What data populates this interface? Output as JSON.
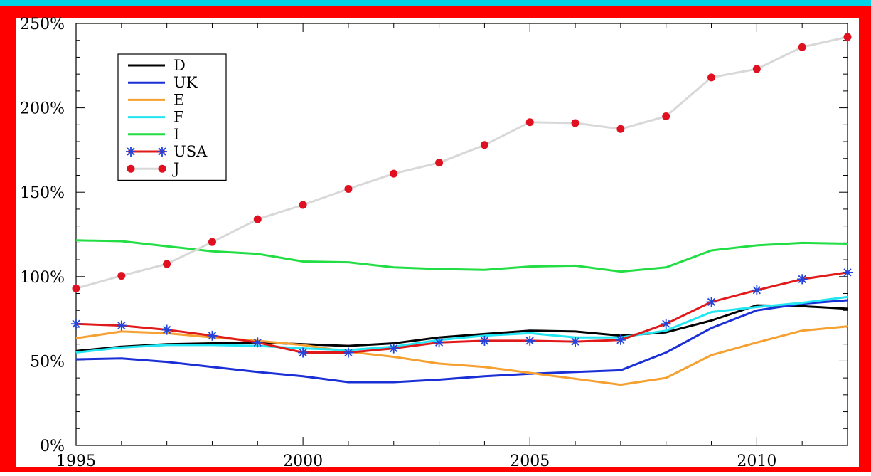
{
  "colors": {
    "top_band": "#00d2e6",
    "frame": "#ff0000",
    "plot_bg": "#ffffff",
    "axis": "#000000"
  },
  "chart_data": {
    "type": "line",
    "title": "",
    "xlabel": "",
    "ylabel": "",
    "xlim": [
      1995,
      2012
    ],
    "ylim": [
      0,
      250
    ],
    "x_ticks": [
      1995,
      2000,
      2005,
      2010
    ],
    "x_tick_labels": [
      "1995",
      "2000",
      "2005",
      "2010"
    ],
    "y_ticks": [
      0,
      50,
      100,
      150,
      200,
      250
    ],
    "y_tick_labels": [
      "0%",
      "50%",
      "100%",
      "150%",
      "200%",
      "250%"
    ],
    "grid": false,
    "legend": "top-left",
    "x": [
      1995,
      1996,
      1997,
      1998,
      1999,
      2000,
      2001,
      2002,
      2003,
      2004,
      2005,
      2006,
      2007,
      2008,
      2009,
      2010,
      2011,
      2012
    ],
    "series": [
      {
        "name": "D",
        "color": "#000000",
        "marker": "none",
        "values": [
          56,
          58.5,
          60,
          60.5,
          61,
          60,
          59,
          60.5,
          64,
          66,
          68,
          67.5,
          65,
          67,
          74,
          83,
          82.5,
          81
        ]
      },
      {
        "name": "UK",
        "color": "#1a2fd6",
        "marker": "none",
        "values": [
          51,
          51.5,
          49.5,
          46.5,
          43.5,
          41,
          37.5,
          37.5,
          39,
          41,
          42.5,
          43.5,
          44.5,
          55,
          69.5,
          80,
          84,
          86
        ]
      },
      {
        "name": "E",
        "color": "#f5a030",
        "marker": "none",
        "values": [
          63.5,
          67.5,
          66.5,
          64,
          62,
          59.5,
          55.5,
          52.5,
          48.5,
          46.5,
          43,
          39.5,
          36,
          40,
          53.5,
          61,
          68,
          70.5
        ]
      },
      {
        "name": "F",
        "color": "#22e6f2",
        "marker": "none",
        "values": [
          55,
          58,
          59.5,
          59.5,
          59,
          57.5,
          56.5,
          58.5,
          62.5,
          65,
          66.5,
          64,
          64,
          68,
          79,
          82,
          84.5,
          88
        ]
      },
      {
        "name": "I",
        "color": "#22dd44",
        "marker": "none",
        "values": [
          121.5,
          121,
          118,
          115,
          113.5,
          109,
          108.5,
          105.5,
          104.5,
          104,
          106,
          106.5,
          103,
          105.5,
          115.5,
          118.5,
          120,
          119.5
        ]
      },
      {
        "name": "USA",
        "color": "#e01a1a",
        "marker": "asterisk",
        "marker_color": "#2244dd",
        "values": [
          72,
          71,
          68.5,
          65,
          61,
          55,
          55,
          57.5,
          61,
          62,
          62,
          61.5,
          62.5,
          72,
          85,
          92,
          98.5,
          102.5
        ]
      },
      {
        "name": "J",
        "color": "#d8d8d8",
        "marker": "circle",
        "marker_color": "#e01020",
        "values": [
          93,
          100.5,
          107.5,
          120.5,
          134,
          142.5,
          152,
          161,
          167.5,
          178,
          191.5,
          191,
          187.5,
          195,
          218,
          223,
          236,
          242
        ]
      }
    ]
  }
}
